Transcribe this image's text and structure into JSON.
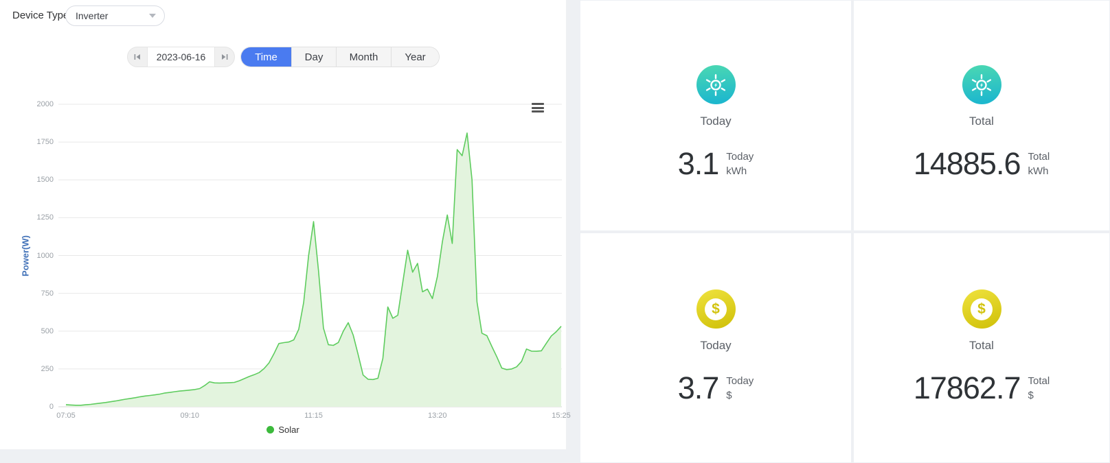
{
  "filters": {
    "device_type_label": "Device Type",
    "device_type_value": "Inverter"
  },
  "date_nav": {
    "date": "2023-06-16"
  },
  "tabs": [
    {
      "label": "Time",
      "active": true
    },
    {
      "label": "Day",
      "active": false
    },
    {
      "label": "Month",
      "active": false
    },
    {
      "label": "Year",
      "active": false
    }
  ],
  "chart_data": {
    "type": "area",
    "title": "",
    "xlabel": "",
    "ylabel": "Power(W)",
    "ylim": [
      0,
      2000
    ],
    "yticks": [
      0,
      250,
      500,
      750,
      1000,
      1250,
      1500,
      1750,
      2000
    ],
    "xticks": [
      "07:05",
      "09:10",
      "11:15",
      "13:20",
      "15:25"
    ],
    "grid": true,
    "legend_position": "bottom",
    "series": [
      {
        "name": "Solar",
        "color": "#5ecc5e",
        "fill": "#e3f4de",
        "legend_dot_color": "#3cba3c",
        "points": [
          [
            "07:05",
            14
          ],
          [
            "07:10",
            12
          ],
          [
            "07:15",
            10
          ],
          [
            "07:20",
            10
          ],
          [
            "07:25",
            13
          ],
          [
            "07:30",
            16
          ],
          [
            "07:35",
            20
          ],
          [
            "07:40",
            24
          ],
          [
            "07:45",
            28
          ],
          [
            "07:50",
            33
          ],
          [
            "07:55",
            38
          ],
          [
            "08:00",
            44
          ],
          [
            "08:05",
            50
          ],
          [
            "08:10",
            55
          ],
          [
            "08:15",
            60
          ],
          [
            "08:20",
            66
          ],
          [
            "08:25",
            71
          ],
          [
            "08:30",
            75
          ],
          [
            "08:35",
            79
          ],
          [
            "08:40",
            84
          ],
          [
            "08:45",
            91
          ],
          [
            "08:50",
            95
          ],
          [
            "08:55",
            100
          ],
          [
            "09:00",
            104
          ],
          [
            "09:05",
            107
          ],
          [
            "09:10",
            110
          ],
          [
            "09:15",
            114
          ],
          [
            "09:20",
            120
          ],
          [
            "09:25",
            140
          ],
          [
            "09:30",
            165
          ],
          [
            "09:35",
            158
          ],
          [
            "09:40",
            157
          ],
          [
            "09:45",
            158
          ],
          [
            "09:50",
            159
          ],
          [
            "09:55",
            161
          ],
          [
            "10:00",
            172
          ],
          [
            "10:05",
            186
          ],
          [
            "10:10",
            200
          ],
          [
            "10:15",
            212
          ],
          [
            "10:20",
            226
          ],
          [
            "10:25",
            252
          ],
          [
            "10:30",
            290
          ],
          [
            "10:35",
            350
          ],
          [
            "10:40",
            418
          ],
          [
            "10:45",
            424
          ],
          [
            "10:50",
            428
          ],
          [
            "10:55",
            442
          ],
          [
            "11:00",
            512
          ],
          [
            "11:05",
            690
          ],
          [
            "11:10",
            1000
          ],
          [
            "11:15",
            1224
          ],
          [
            "11:20",
            900
          ],
          [
            "11:25",
            520
          ],
          [
            "11:30",
            410
          ],
          [
            "11:35",
            406
          ],
          [
            "11:40",
            425
          ],
          [
            "11:45",
            500
          ],
          [
            "11:50",
            556
          ],
          [
            "11:55",
            474
          ],
          [
            "12:00",
            345
          ],
          [
            "12:05",
            210
          ],
          [
            "12:10",
            182
          ],
          [
            "12:15",
            180
          ],
          [
            "12:20",
            188
          ],
          [
            "12:25",
            320
          ],
          [
            "12:30",
            660
          ],
          [
            "12:35",
            585
          ],
          [
            "12:40",
            605
          ],
          [
            "12:45",
            820
          ],
          [
            "12:50",
            1035
          ],
          [
            "12:55",
            890
          ],
          [
            "13:00",
            948
          ],
          [
            "13:05",
            760
          ],
          [
            "13:10",
            778
          ],
          [
            "13:15",
            715
          ],
          [
            "13:20",
            862
          ],
          [
            "13:25",
            1090
          ],
          [
            "13:30",
            1268
          ],
          [
            "13:35",
            1080
          ],
          [
            "13:40",
            1700
          ],
          [
            "13:45",
            1660
          ],
          [
            "13:50",
            1810
          ],
          [
            "13:55",
            1500
          ],
          [
            "14:00",
            694
          ],
          [
            "14:05",
            486
          ],
          [
            "14:10",
            470
          ],
          [
            "14:15",
            398
          ],
          [
            "14:20",
            330
          ],
          [
            "14:25",
            256
          ],
          [
            "14:30",
            246
          ],
          [
            "14:35",
            250
          ],
          [
            "14:40",
            264
          ],
          [
            "14:45",
            300
          ],
          [
            "14:50",
            382
          ],
          [
            "14:55",
            368
          ],
          [
            "15:00",
            367
          ],
          [
            "15:05",
            370
          ],
          [
            "15:10",
            420
          ],
          [
            "15:15",
            468
          ],
          [
            "15:20",
            496
          ],
          [
            "15:25",
            532
          ]
        ]
      }
    ]
  },
  "stats": [
    {
      "icon": "solar-energy",
      "label": "Today",
      "value": "3.1",
      "unit_period": "Today",
      "unit_name": "kWh"
    },
    {
      "icon": "solar-energy",
      "label": "Total",
      "value": "14885.6",
      "unit_period": "Total",
      "unit_name": "kWh"
    },
    {
      "icon": "dollar",
      "label": "Today",
      "value": "3.7",
      "unit_period": "Today",
      "unit_name": "$"
    },
    {
      "icon": "dollar",
      "label": "Total",
      "value": "17862.7",
      "unit_period": "Total",
      "unit_name": "$"
    }
  ],
  "icons": {
    "dollar_symbol": "$"
  },
  "colors": {
    "accent_blue": "#4a7bf0",
    "chart_line": "#5ecc5e",
    "chart_fill": "#e3f4de",
    "legend_dot": "#3cba3c",
    "axis_label": "#9aa0a6",
    "y_axis_title": "#4272b8",
    "icon_teal_start": "#4bd8b2",
    "icon_teal_end": "#1eb8cd",
    "icon_yellow_start": "#ecdf39",
    "icon_yellow_end": "#d2c30d",
    "page_background": "#eef0f3"
  }
}
